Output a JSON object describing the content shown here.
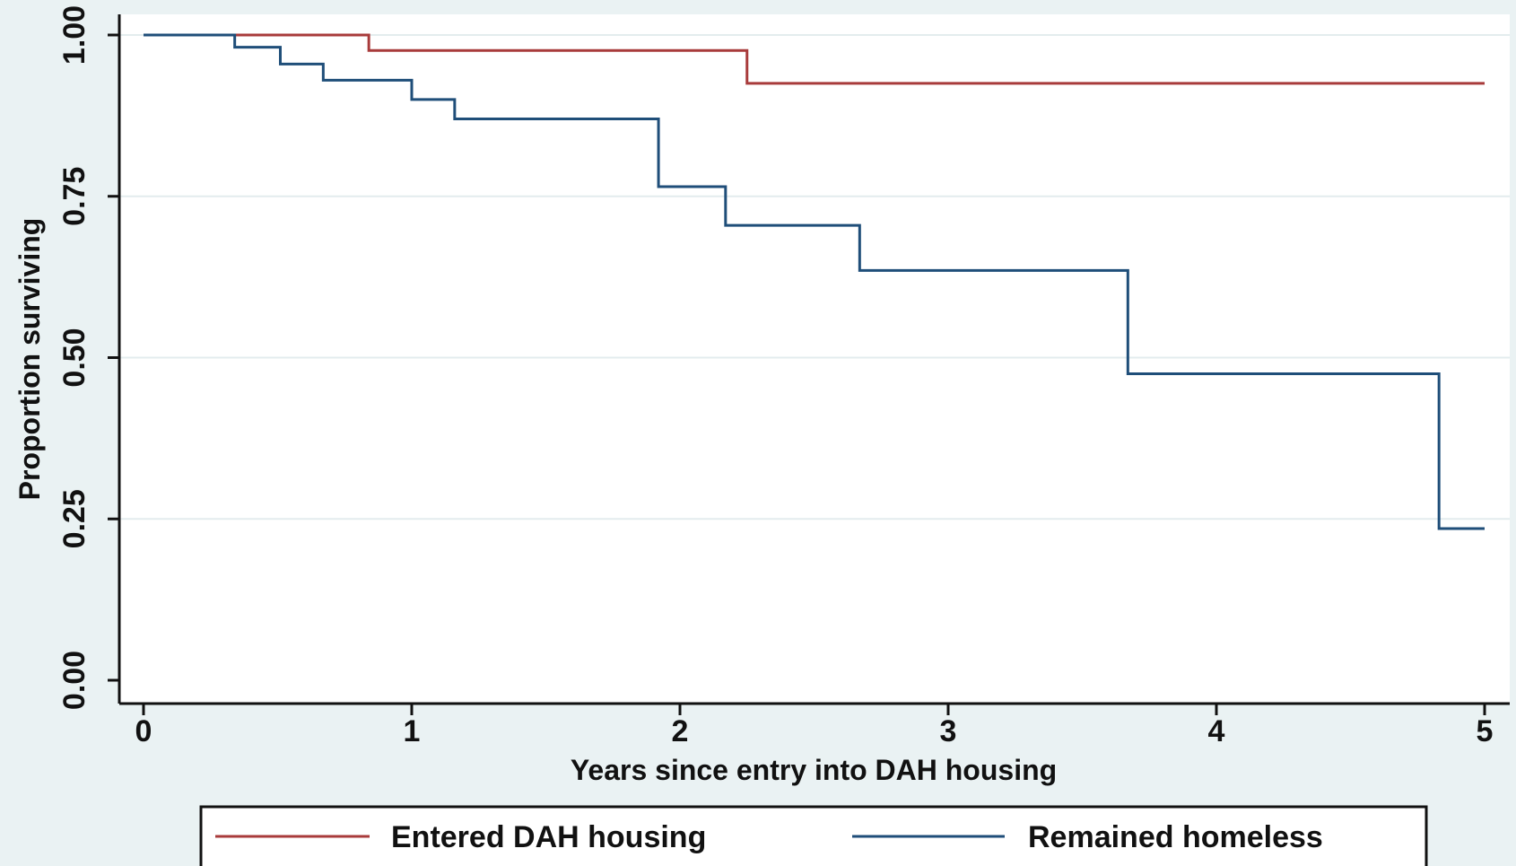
{
  "chart_data": {
    "type": "line",
    "step": true,
    "xlabel": "Years since entry into DAH housing",
    "ylabel": "Proportion surviving",
    "xlim": [
      0,
      5
    ],
    "ylim": [
      0,
      1
    ],
    "x_ticks": [
      "0",
      "1",
      "2",
      "3",
      "4",
      "5"
    ],
    "y_ticks": [
      "0.00",
      "0.25",
      "0.50",
      "0.75",
      "1.00"
    ],
    "grid": "horizontal",
    "legend_position": "bottom",
    "series": [
      {
        "name": "Entered DAH housing",
        "color": "#a83b3b",
        "x": [
          0,
          0.84,
          2.25,
          5.0
        ],
        "y": [
          1.0,
          0.976,
          0.925,
          0.925
        ]
      },
      {
        "name": "Remained homeless",
        "color": "#1f4e79",
        "x": [
          0,
          0.34,
          0.51,
          0.67,
          1.0,
          1.16,
          1.92,
          2.17,
          2.67,
          3.67,
          4.83,
          5.0
        ],
        "y": [
          1.0,
          0.981,
          0.955,
          0.93,
          0.9,
          0.87,
          0.765,
          0.705,
          0.635,
          0.475,
          0.235,
          0.235
        ]
      }
    ]
  }
}
